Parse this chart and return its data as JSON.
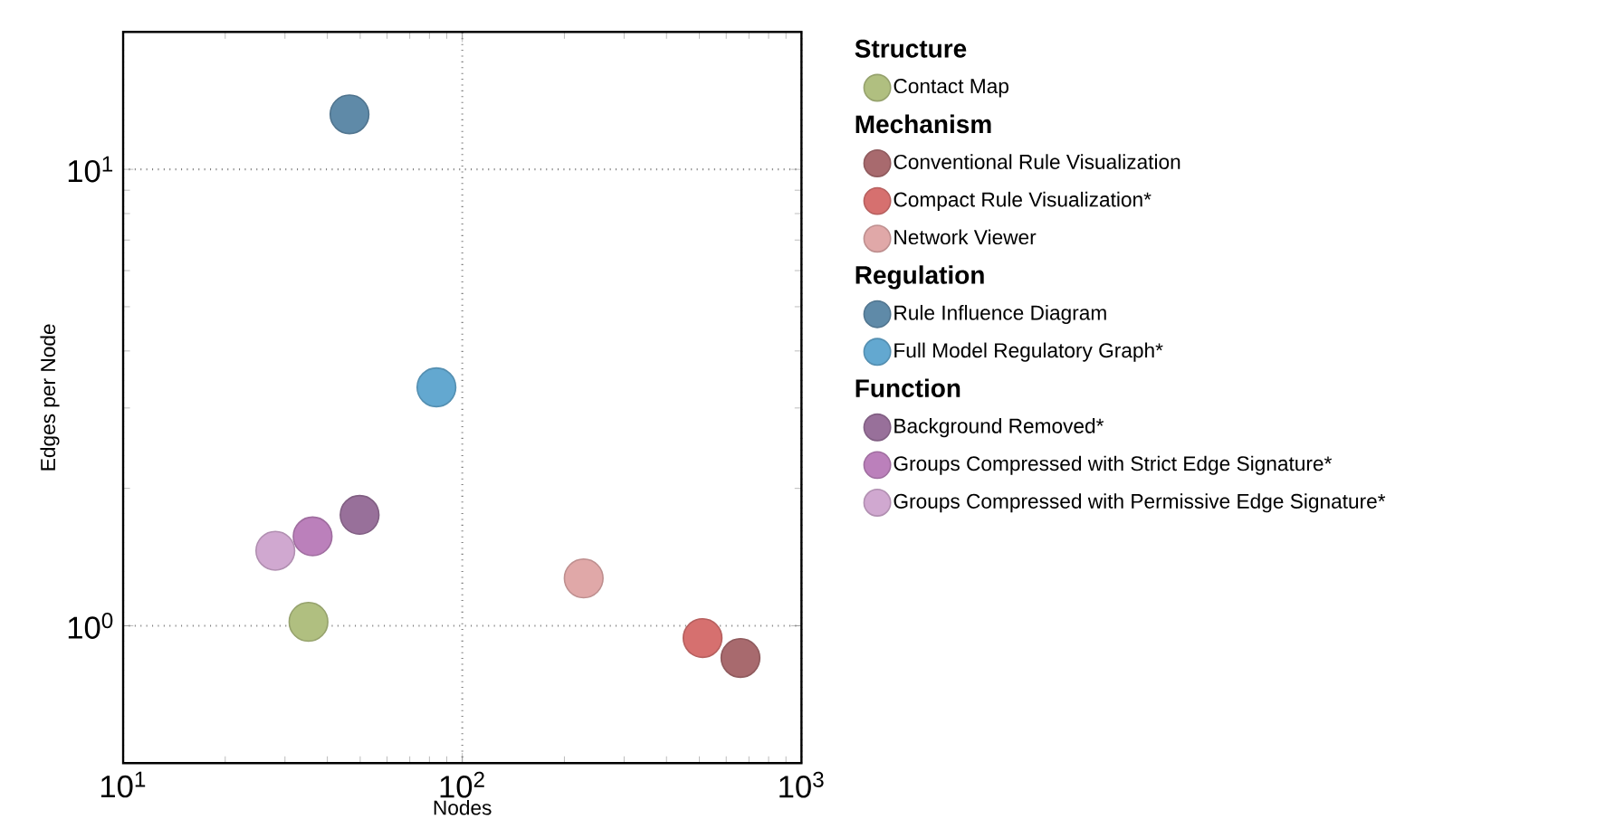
{
  "chart_data": {
    "type": "scatter",
    "xlabel": "Nodes",
    "ylabel": "Edges per Node",
    "log": "xy",
    "grid": true,
    "legend": "right",
    "marker": "circle",
    "xlim": [
      10,
      1000
    ],
    "ylim": [
      0.5,
      20
    ],
    "xticks": [
      {
        "value": 10,
        "label": "10$^{1}$"
      },
      {
        "value": 100,
        "label": "10$^{2}$"
      },
      {
        "value": 1000,
        "label": "10$^{3}$"
      }
    ],
    "yticks": [
      {
        "value": 1,
        "label": "10$^{0}$"
      },
      {
        "value": 10,
        "label": "10$^{1}$"
      }
    ],
    "annotations": [
      "Structure",
      "Mechanism",
      "Regulation",
      "Function"
    ],
    "series": [
      {
        "name": "Contact Map",
        "color": "#b0bf80",
        "x": [
          35.2
        ],
        "values": [
          1.02
        ]
      },
      {
        "name": "Conventional Rule Visualization",
        "color": "#a86a6e",
        "x": [
          661
        ],
        "values": [
          0.85
        ]
      },
      {
        "name": "Compact Rule Visualization*",
        "color": "#d6706f",
        "x": [
          511
        ],
        "values": [
          0.94
        ]
      },
      {
        "name": "Network Viewer",
        "color": "#e0a8a8",
        "x": [
          228
        ],
        "values": [
          1.27
        ]
      },
      {
        "name": "Rule Influence Diagram",
        "color": "#5f8aa8",
        "x": [
          46.5
        ],
        "values": [
          13.2
        ]
      },
      {
        "name": "Full Model Regulatory Graph*",
        "color": "#63a8d0",
        "x": [
          83.9
        ],
        "values": [
          3.33
        ]
      },
      {
        "name": "Background Removed*",
        "color": "#98709a",
        "x": [
          49.8
        ],
        "values": [
          1.75
        ]
      },
      {
        "name": "Groups Compressed with Strict Edge Signature*",
        "color": "#bb80bb",
        "x": [
          36.2
        ],
        "values": [
          1.57
        ]
      },
      {
        "name": "Groups Compressed with Permissive Edge Signature*",
        "color": "#d0a8d0",
        "x": [
          28.1
        ],
        "values": [
          1.46
        ]
      }
    ]
  }
}
